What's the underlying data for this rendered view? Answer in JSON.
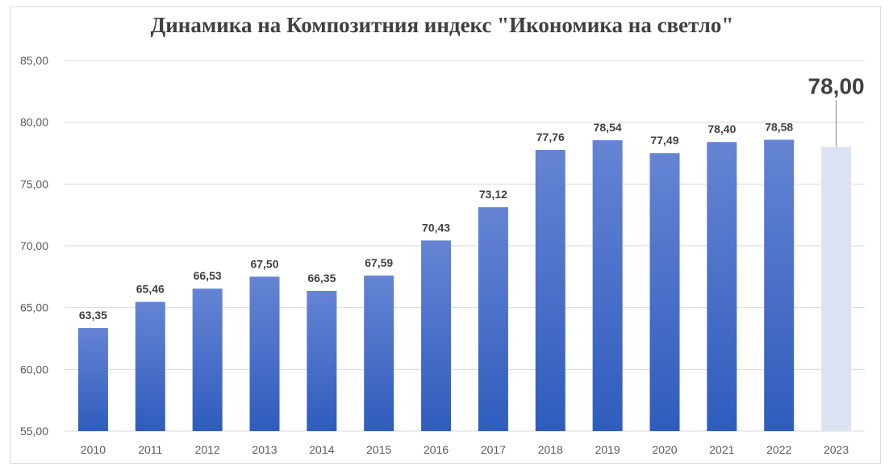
{
  "chart_data": {
    "type": "bar",
    "title": "Динамика на Композитния индекс \"Икономика на светло\"",
    "categories": [
      "2010",
      "2011",
      "2012",
      "2013",
      "2014",
      "2015",
      "2016",
      "2017",
      "2018",
      "2019",
      "2020",
      "2021",
      "2022",
      "2023"
    ],
    "values": [
      63.35,
      65.46,
      66.53,
      67.5,
      66.35,
      67.59,
      70.43,
      73.12,
      77.76,
      78.54,
      77.49,
      78.4,
      78.58,
      78.0
    ],
    "data_labels": [
      "63,35",
      "65,46",
      "66,53",
      "67,50",
      "66,35",
      "67,59",
      "70,43",
      "73,12",
      "77,76",
      "78,54",
      "77,49",
      "78,40",
      "78,58",
      "78,00"
    ],
    "highlighted_category": "2023",
    "ylim": [
      55,
      85
    ],
    "yticks": [
      "55,00",
      "60,00",
      "65,00",
      "70,00",
      "75,00",
      "80,00",
      "85,00"
    ],
    "xlabel": "",
    "ylabel": "",
    "grid": true,
    "colors": {
      "bar_top": "#6584d3",
      "bar_bottom": "#2f5cbd",
      "highlight_bar": "#dbe2f2",
      "grid": "#d9d9d9"
    }
  }
}
